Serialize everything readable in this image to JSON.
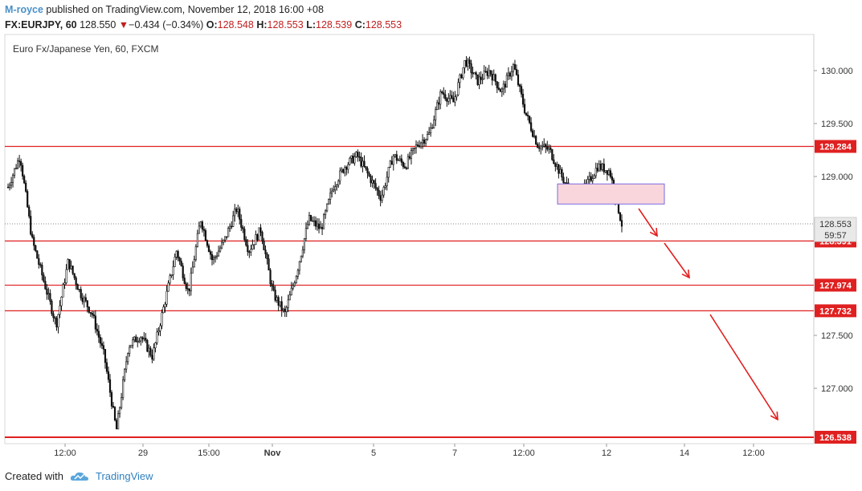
{
  "header": {
    "author": "M-royce",
    "published": "published on TradingView.com, November 12, 2018 16:00 +08",
    "symbol": "FX:EURJPY, 60",
    "last": "128.550",
    "change_arrow": "▼",
    "change": "−0.434 (−0.34%)",
    "o_label": "O:",
    "o": "128.548",
    "h_label": "H:",
    "h": "128.553",
    "l_label": "L:",
    "l": "128.539",
    "c_label": "C:",
    "c": "128.553"
  },
  "footer": {
    "created": "Created with",
    "brand": "TradingView",
    "logo_icon": "tradingview-cloud-icon"
  },
  "colors": {
    "line": "#e02020",
    "candle": "#111111",
    "box_fill": "#f9d6dc",
    "box_stroke": "#7a6be0",
    "brand": "#2f80c0"
  },
  "chart_data": {
    "type": "line",
    "title": "Euro Fx/Japanese Yen, 60, FXCM",
    "ylim": [
      126.45,
      130.45
    ],
    "y_ticks": [
      "130.000",
      "129.500",
      "129.000",
      "127.500",
      "127.000"
    ],
    "y_tick_values": [
      130.0,
      129.5,
      129.0,
      127.5,
      127.0
    ],
    "x_ticks": [
      "12:00",
      "29",
      "15:00",
      "Nov",
      "5",
      "7",
      "12:00",
      "12",
      "14",
      "12:00"
    ],
    "x_tick_bold": [
      false,
      false,
      false,
      true,
      false,
      false,
      false,
      false,
      false,
      false
    ],
    "price_path": [
      [
        0,
        128.9
      ],
      [
        10,
        129.2
      ],
      [
        18,
        128.4
      ],
      [
        26,
        128.0
      ],
      [
        33,
        127.6
      ],
      [
        40,
        128.2
      ],
      [
        47,
        127.9
      ],
      [
        52,
        127.7
      ],
      [
        58,
        127.3
      ],
      [
        63,
        126.6
      ],
      [
        68,
        127.4
      ],
      [
        75,
        127.5
      ],
      [
        80,
        127.3
      ],
      [
        86,
        127.8
      ],
      [
        93,
        128.3
      ],
      [
        100,
        127.9
      ],
      [
        107,
        128.6
      ],
      [
        113,
        128.2
      ],
      [
        120,
        128.4
      ],
      [
        127,
        128.7
      ],
      [
        133,
        128.3
      ],
      [
        138,
        128.5
      ],
      [
        144,
        127.9
      ],
      [
        149,
        127.7
      ],
      [
        155,
        128.1
      ],
      [
        162,
        128.6
      ],
      [
        168,
        128.5
      ],
      [
        175,
        128.9
      ],
      [
        182,
        129.1
      ],
      [
        188,
        129.2
      ],
      [
        195,
        129.0
      ],
      [
        202,
        128.8
      ],
      [
        208,
        129.2
      ],
      [
        215,
        129.1
      ],
      [
        222,
        129.3
      ],
      [
        228,
        129.4
      ],
      [
        235,
        129.8
      ],
      [
        241,
        129.7
      ],
      [
        248,
        130.1
      ],
      [
        254,
        129.9
      ],
      [
        260,
        130.0
      ],
      [
        266,
        129.8
      ],
      [
        272,
        130.05
      ],
      [
        278,
        129.6
      ],
      [
        284,
        129.3
      ],
      [
        290,
        129.25
      ],
      [
        296,
        129.0
      ],
      [
        303,
        128.8
      ],
      [
        309,
        128.9
      ],
      [
        315,
        129.1
      ],
      [
        321,
        129.05
      ],
      [
        324,
        128.55
      ]
    ],
    "series": [
      {
        "name": "128.391",
        "values": [
          128.391
        ]
      },
      {
        "name": "127.974",
        "values": [
          127.974
        ]
      },
      {
        "name": "127.732",
        "values": [
          127.732
        ]
      },
      {
        "name": "126.538",
        "values": [
          126.538
        ]
      },
      {
        "name": "129.284",
        "values": [
          129.284
        ]
      }
    ],
    "last_price": 128.553,
    "last_price_label": "128.553",
    "countdown": "59:57",
    "level_labels": [
      "129.284",
      "128.391",
      "127.974",
      "127.732",
      "126.538"
    ],
    "level_values": [
      129.284,
      128.391,
      127.974,
      127.732,
      126.538
    ],
    "zone": {
      "y_top": 128.93,
      "y_bottom": 128.74
    },
    "arrows_icon": "down-arrow-icon"
  }
}
